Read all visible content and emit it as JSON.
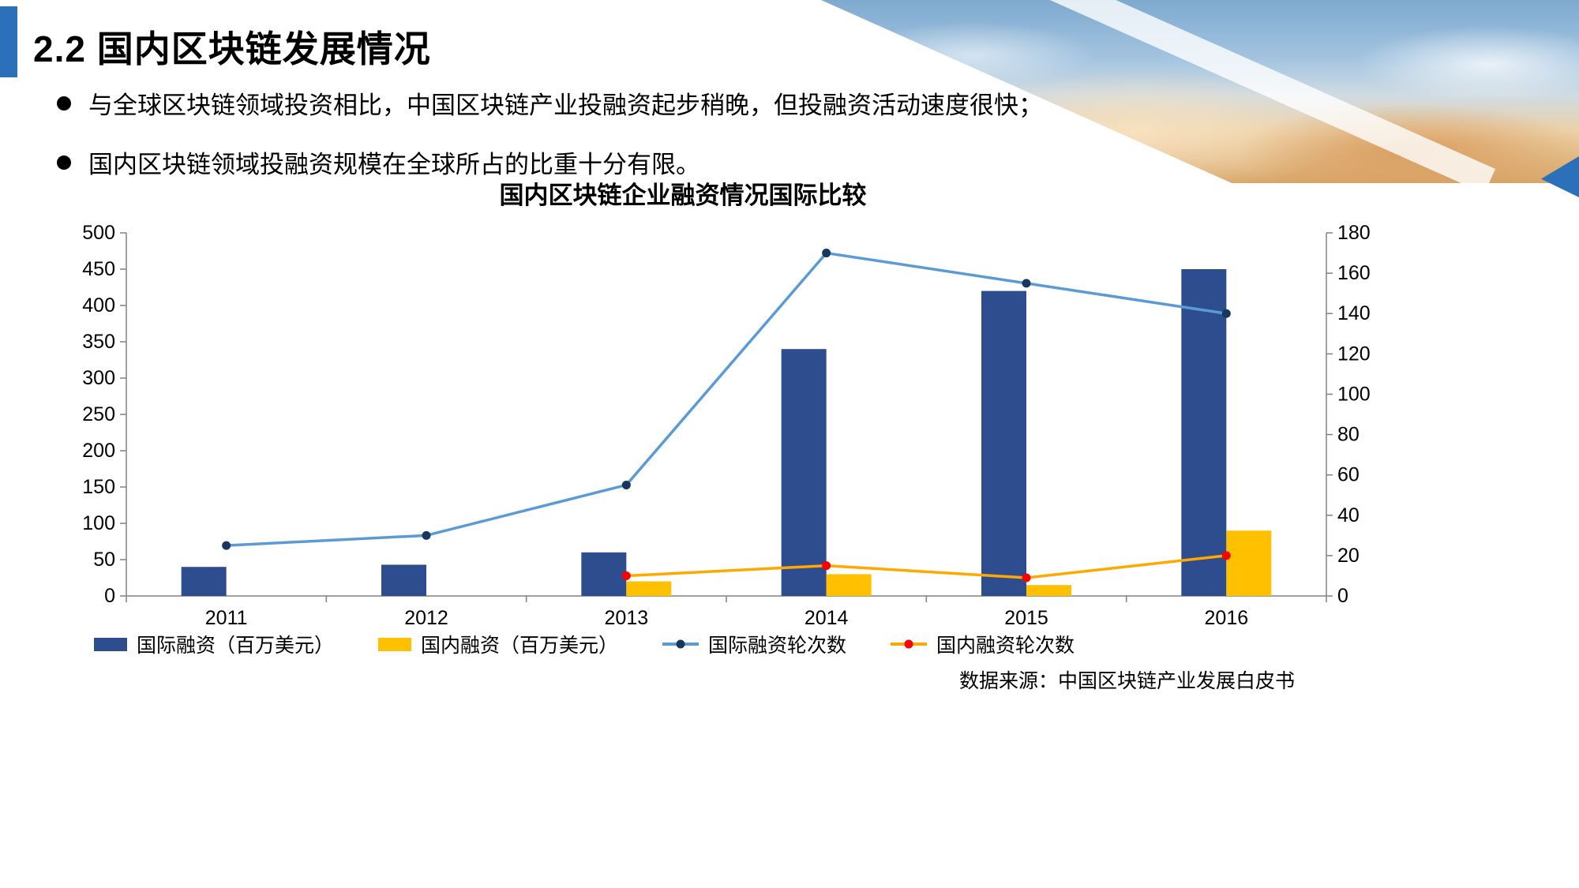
{
  "slide": {
    "title": "2.2 国内区块链发展情况",
    "bullets": [
      "与全球区块链领域投资相比，中国区块链产业投融资起步稍晚，但投融资活动速度很快；",
      "国内区块链领域投融资规模在全球所占的比重十分有限。"
    ],
    "chart_title": "国内区块链企业融资情况国际比较",
    "source": "数据来源：中国区块链产业发展白皮书"
  },
  "colors": {
    "accent_bar": "#2B70B8",
    "bar_international": "#2E4D8E",
    "bar_domestic": "#FFC000",
    "line_international": "#5B9BD5",
    "line_international_marker": "#17375E",
    "line_domestic": "#FFA800",
    "line_domestic_marker": "#FF0000"
  },
  "chart_data": {
    "type": "combo",
    "title": "国内区块链企业融资情况国际比较",
    "categories": [
      "2011",
      "2012",
      "2013",
      "2014",
      "2015",
      "2016"
    ],
    "series": [
      {
        "key": "international-funding",
        "name": "国际融资（百万美元）",
        "chart_type": "bar",
        "axis": "left",
        "color": "#2E4D8E",
        "values": [
          40,
          43,
          60,
          340,
          420,
          450
        ]
      },
      {
        "key": "domestic-funding",
        "name": "国内融资（百万美元）",
        "chart_type": "bar",
        "axis": "left",
        "color": "#FFC000",
        "values": [
          0,
          0,
          20,
          30,
          15,
          90
        ]
      },
      {
        "key": "international-rounds",
        "name": "国际融资轮次数",
        "chart_type": "line",
        "axis": "right",
        "color": "#5B9BD5",
        "marker_color": "#17375E",
        "values": [
          25,
          30,
          55,
          170,
          155,
          140
        ]
      },
      {
        "key": "domestic-rounds",
        "name": "国内融资轮次数",
        "chart_type": "line",
        "axis": "right",
        "color": "#FFA800",
        "marker_color": "#FF0000",
        "values": [
          null,
          null,
          10,
          15,
          9,
          20
        ]
      }
    ],
    "left_axis": {
      "min": 0,
      "max": 500,
      "step": 50
    },
    "right_axis": {
      "min": 0,
      "max": 180,
      "step": 20
    },
    "legend_position": "bottom",
    "grid": false
  }
}
